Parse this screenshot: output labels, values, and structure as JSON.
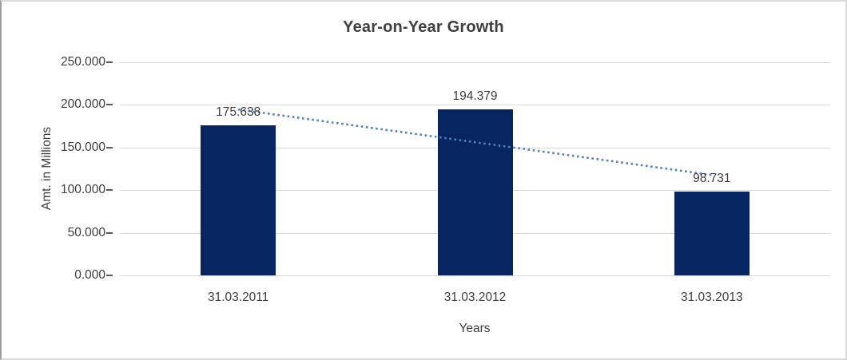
{
  "chart_data": {
    "type": "bar",
    "title": "Year-on-Year Growth",
    "xlabel": "Years",
    "ylabel": "Amt. in Millions",
    "categories": [
      "31.03.2011",
      "31.03.2012",
      "31.03.2013"
    ],
    "values": [
      175.638,
      194.379,
      98.731
    ],
    "data_labels": [
      "175.638",
      "194.379",
      "98.731"
    ],
    "ylim": [
      0,
      250
    ],
    "yticks": [
      0,
      50,
      100,
      150,
      200,
      250
    ],
    "ytick_labels": [
      "0.000",
      "50.000",
      "100.000",
      "150.000",
      "200.000",
      "250.000"
    ],
    "grid": true,
    "legend": "none",
    "trendline": {
      "type": "linear",
      "style": "dotted",
      "start_value": 194.7,
      "end_value": 117.8
    },
    "colors": {
      "bar": "#062561",
      "trendline": "#4f81bd",
      "gridline": "#d9d9d9",
      "tick": "#595959",
      "text": "#3d3d3d",
      "title": "#3f3f3f",
      "frame": "#d9d9d9",
      "frame_left": "#9e9e9e"
    }
  }
}
